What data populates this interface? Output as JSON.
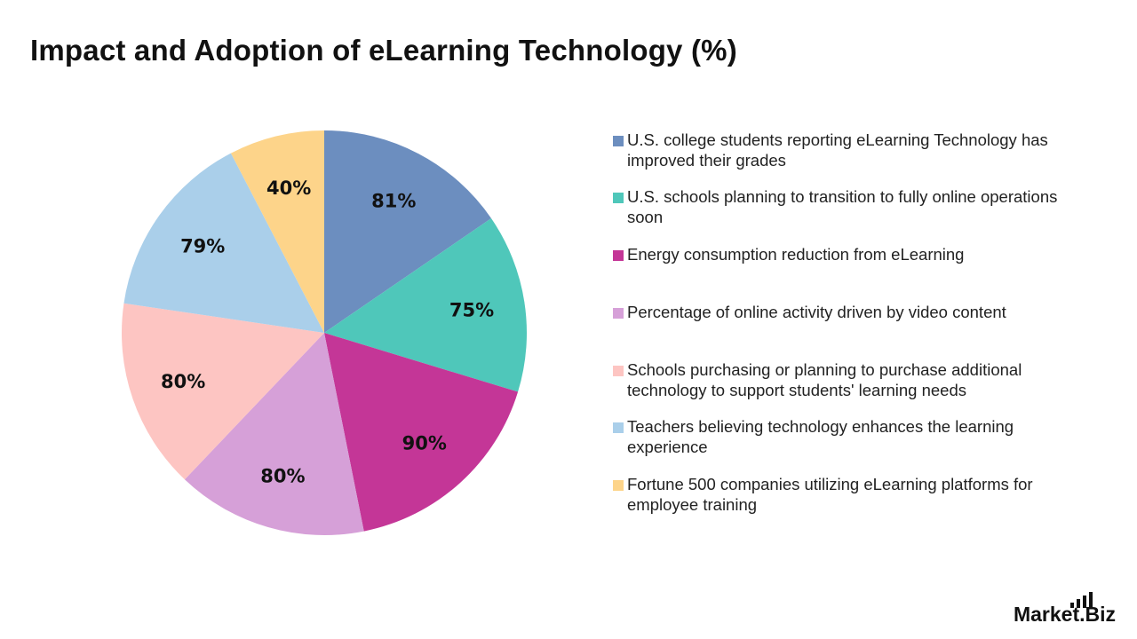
{
  "chart_data": {
    "type": "pie",
    "title": "Impact and Adoption of eLearning Technology (%)",
    "slices": [
      {
        "label": "U.S. college students reporting eLearning Technology has improved their grades",
        "value": 81,
        "display": "81%",
        "color": "#6C8EBF"
      },
      {
        "label": "U.S. schools planning to transition to fully online operations soon",
        "value": 75,
        "display": "75%",
        "color": "#4FC7BA"
      },
      {
        "label": "Energy consumption reduction from eLearning",
        "value": 90,
        "display": "90%",
        "color": "#C43697"
      },
      {
        "label": "Percentage of online activity driven by video content",
        "value": 80,
        "display": "80%",
        "color": "#D6A0D8"
      },
      {
        "label": "Schools purchasing or planning to purchase additional technology to support students' learning needs",
        "value": 80,
        "display": "80%",
        "color": "#FDC5C2"
      },
      {
        "label": "Teachers believing technology enhances the learning experience",
        "value": 79,
        "display": "79%",
        "color": "#AACFEA"
      },
      {
        "label": "Fortune 500 companies utilizing eLearning platforms for employee training",
        "value": 40,
        "display": "40%",
        "color": "#FDD48A"
      }
    ],
    "legend_position": "right"
  },
  "brand": {
    "name": "Market.Biz"
  }
}
